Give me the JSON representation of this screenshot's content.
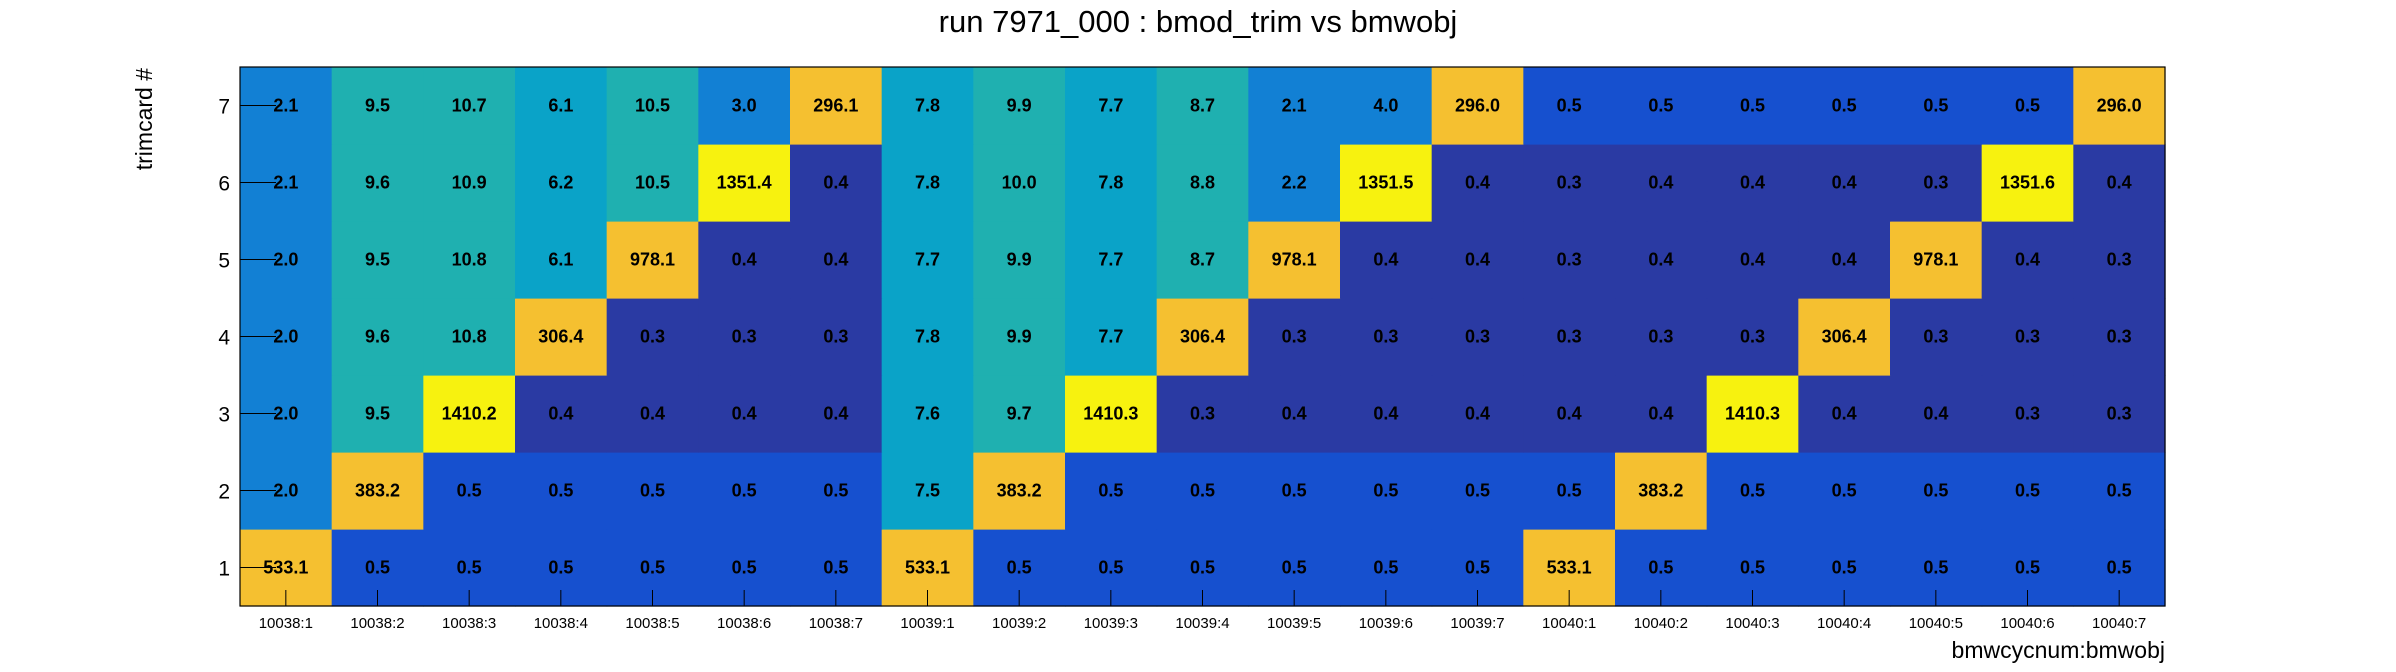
{
  "chart_data": {
    "type": "heatmap",
    "title": "run 7971_000 : bmod_trim vs bmwobj",
    "xlabel": "bmwcycnum:bmwobj",
    "ylabel": "trimcard #",
    "x_categories": [
      "10038:1",
      "10038:2",
      "10038:3",
      "10038:4",
      "10038:5",
      "10038:6",
      "10038:7",
      "10039:1",
      "10039:2",
      "10039:3",
      "10039:4",
      "10039:5",
      "10039:6",
      "10039:7",
      "10040:1",
      "10040:2",
      "10040:3",
      "10040:4",
      "10040:5",
      "10040:6",
      "10040:7"
    ],
    "y_categories": [
      "1",
      "2",
      "3",
      "4",
      "5",
      "6",
      "7"
    ],
    "values": [
      [
        "533.1",
        "0.5",
        "0.5",
        "0.5",
        "0.5",
        "0.5",
        "0.5",
        "533.1",
        "0.5",
        "0.5",
        "0.5",
        "0.5",
        "0.5",
        "0.5",
        "533.1",
        "0.5",
        "0.5",
        "0.5",
        "0.5",
        "0.5",
        "0.5"
      ],
      [
        "2.0",
        "383.2",
        "0.5",
        "0.5",
        "0.5",
        "0.5",
        "0.5",
        "7.5",
        "383.2",
        "0.5",
        "0.5",
        "0.5",
        "0.5",
        "0.5",
        "0.5",
        "383.2",
        "0.5",
        "0.5",
        "0.5",
        "0.5",
        "0.5"
      ],
      [
        "2.0",
        "9.5",
        "1410.2",
        "0.4",
        "0.4",
        "0.4",
        "0.4",
        "7.6",
        "9.7",
        "1410.3",
        "0.3",
        "0.4",
        "0.4",
        "0.4",
        "0.4",
        "0.4",
        "1410.3",
        "0.4",
        "0.4",
        "0.3",
        "0.3"
      ],
      [
        "2.0",
        "9.6",
        "10.8",
        "306.4",
        "0.3",
        "0.3",
        "0.3",
        "7.8",
        "9.9",
        "7.7",
        "306.4",
        "0.3",
        "0.3",
        "0.3",
        "0.3",
        "0.3",
        "0.3",
        "306.4",
        "0.3",
        "0.3",
        "0.3"
      ],
      [
        "2.0",
        "9.5",
        "10.8",
        "6.1",
        "978.1",
        "0.4",
        "0.4",
        "7.7",
        "9.9",
        "7.7",
        "8.7",
        "978.1",
        "0.4",
        "0.4",
        "0.3",
        "0.4",
        "0.4",
        "0.4",
        "978.1",
        "0.4",
        "0.3"
      ],
      [
        "2.1",
        "9.6",
        "10.9",
        "6.2",
        "10.5",
        "1351.4",
        "0.4",
        "7.8",
        "10.0",
        "7.8",
        "8.8",
        "2.2",
        "1351.5",
        "0.4",
        "0.3",
        "0.4",
        "0.4",
        "0.4",
        "0.3",
        "1351.6",
        "0.4"
      ],
      [
        "2.1",
        "9.5",
        "10.7",
        "6.1",
        "10.5",
        "3.0",
        "296.1",
        "7.8",
        "9.9",
        "7.7",
        "8.7",
        "2.1",
        "4.0",
        "296.0",
        "0.5",
        "0.5",
        "0.5",
        "0.5",
        "0.5",
        "0.5",
        "296.0"
      ]
    ],
    "zscale": "log",
    "palette": [
      "#2a3aa3",
      "#1650cf",
      "#1280d4",
      "#0aa3c8",
      "#1fb0b0",
      "#f5c030",
      "#f7f20f"
    ],
    "grid": false,
    "legend": "none"
  }
}
